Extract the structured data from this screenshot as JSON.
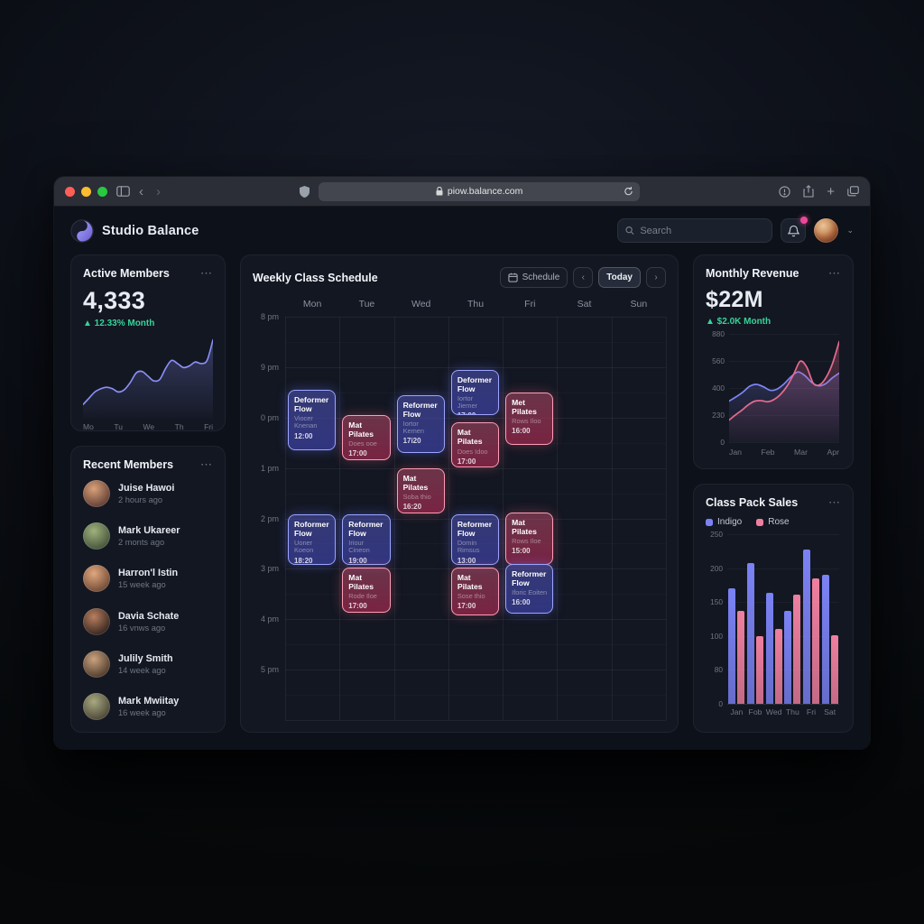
{
  "browser": {
    "url": "piow.balance.com",
    "traffic_lights": [
      "#ff5f57",
      "#febc2e",
      "#28c840"
    ]
  },
  "icons": {
    "card_menu": "⋯",
    "back": "‹",
    "forward": "›",
    "prev": "‹",
    "next": "›",
    "chevron_down": "⌄",
    "plus": "+",
    "trend_up": "▲"
  },
  "header": {
    "app_name": "Studio Balance",
    "search_placeholder": "Search"
  },
  "active_members": {
    "title": "Active Members",
    "value": "4,333",
    "delta": "▲ 12.33% Month"
  },
  "recent_members": {
    "title": "Recent Members",
    "members": [
      {
        "name": "Juise Hawoi",
        "ago": "2 hours ago",
        "c1": "#d9a27a",
        "c2": "#5f3d33"
      },
      {
        "name": "Mark Ukareer",
        "ago": "2 monts ago",
        "c1": "#9fb27c",
        "c2": "#45523a"
      },
      {
        "name": "Harron'l Istin",
        "ago": "15 week ago",
        "c1": "#e0a87e",
        "c2": "#6e4936"
      },
      {
        "name": "Davia Schate",
        "ago": "16 vnws ago",
        "c1": "#b97f5e",
        "c2": "#33241f"
      },
      {
        "name": "Julily Smith",
        "ago": "14 week ago",
        "c1": "#caa37f",
        "c2": "#4d3a2b"
      },
      {
        "name": "Mark Mwiitay",
        "ago": "16 week ago",
        "c1": "#a8a981",
        "c2": "#4a4536"
      }
    ]
  },
  "schedule": {
    "title": "Weekly Class Schedule",
    "schedule_button": "Schedule",
    "today_button": "Today",
    "days": [
      "Mon",
      "Tue",
      "Wed",
      "Thu",
      "Fri",
      "Sat",
      "Sun"
    ],
    "times": [
      "8 pm",
      "9 pm",
      "0 pm",
      "1 pm",
      "2 pm",
      "3 pm",
      "4 pm",
      "5 pm"
    ],
    "events": [
      {
        "day": 0,
        "title": "Deformer Flow",
        "instructor": "Viocer Knenan",
        "time": "12:00",
        "color": "indigo",
        "start": 1.45,
        "span": 1.25
      },
      {
        "day": 1,
        "title": "Mat Pilates",
        "instructor": "Does ooe",
        "time": "17:00",
        "color": "rose",
        "start": 1.95,
        "span": 0.95
      },
      {
        "day": 2,
        "title": "Reformer Flow",
        "instructor": "Iortor Kemen",
        "time": "17i20",
        "color": "indigo",
        "start": 1.55,
        "span": 1.2
      },
      {
        "day": 3,
        "title": "Deformer Flow",
        "instructor": "Iortor Jiemer",
        "time": "17:00",
        "color": "indigo",
        "start": 1.05,
        "span": 0.95
      },
      {
        "day": 3,
        "title": "Mat Pilates",
        "instructor": "Does Idoo",
        "time": "17:00",
        "color": "rose",
        "start": 2.1,
        "span": 0.95
      },
      {
        "day": 4,
        "title": "Met Pilates",
        "instructor": "Rows Iloo",
        "time": "16:00",
        "color": "rose",
        "start": 1.5,
        "span": 1.1
      },
      {
        "day": 2,
        "title": "Mat Pilates",
        "instructor": "Soba thio",
        "time": "16:20",
        "color": "rose",
        "start": 3.0,
        "span": 0.95
      },
      {
        "day": 0,
        "title": "Roformer Flow",
        "instructor": "Uoner Koeon",
        "time": "18:20",
        "color": "indigo",
        "start": 3.92,
        "span": 1.05
      },
      {
        "day": 1,
        "title": "Reformer Flow",
        "instructor": "Iriour Cineon",
        "time": "19:00",
        "color": "indigo",
        "start": 3.92,
        "span": 1.05
      },
      {
        "day": 3,
        "title": "Reformer Flow",
        "instructor": "Domin Rimsus",
        "time": "13:00",
        "color": "indigo",
        "start": 3.92,
        "span": 1.05
      },
      {
        "day": 4,
        "title": "Mat Pilates",
        "instructor": "Rows Iloe",
        "time": "15:00",
        "color": "rose",
        "start": 3.88,
        "span": 1.1
      },
      {
        "day": 1,
        "title": "Mat Pilates",
        "instructor": "Rode Iloe",
        "time": "17:00",
        "color": "rose",
        "start": 4.97,
        "span": 0.95
      },
      {
        "day": 3,
        "title": "Mat Pilates",
        "instructor": "Sose thio",
        "time": "17:00",
        "color": "rose",
        "start": 4.97,
        "span": 1.0
      },
      {
        "day": 4,
        "title": "Reformer Flow",
        "instructor": "Iforic Eoiten",
        "time": "16:00",
        "color": "indigo",
        "start": 4.9,
        "span": 1.05
      }
    ]
  },
  "revenue": {
    "title": "Monthly Revenue",
    "value": "$22M",
    "delta": "▲ $2.0K Month"
  },
  "class_pack": {
    "title": "Class Pack Sales"
  },
  "chart_data": [
    {
      "id": "active-members-spark",
      "type": "area",
      "title": "Active Members weekly trend",
      "x_labels": [
        "Mo",
        "Tu",
        "We",
        "Th",
        "Fri"
      ],
      "ylim": [
        0,
        100
      ],
      "color": "#8b90f8",
      "values": [
        14,
        22,
        30,
        34,
        36,
        34,
        30,
        33,
        42,
        54,
        56,
        50,
        44,
        46,
        60,
        70,
        66,
        61,
        63,
        68,
        66,
        70,
        96
      ]
    },
    {
      "id": "monthly-revenue",
      "type": "line",
      "title": "Monthly Revenue",
      "x_labels": [
        "Jan",
        "Feb",
        "Mar",
        "Apr"
      ],
      "y_ticks": [
        "880",
        "560",
        "400",
        "230",
        "0"
      ],
      "ylim": [
        0,
        880
      ],
      "grid": true,
      "series": [
        {
          "name": "Indigo",
          "color": "#7d84f5",
          "values": [
            330,
            365,
            405,
            455,
            470,
            450,
            420,
            432,
            475,
            535,
            575,
            545,
            488,
            458,
            475,
            525,
            565
          ]
        },
        {
          "name": "Rose",
          "color": "#e66a8e",
          "values": [
            170,
            215,
            255,
            300,
            330,
            333,
            325,
            345,
            390,
            460,
            560,
            665,
            615,
            480,
            468,
            530,
            650,
            830
          ]
        }
      ]
    },
    {
      "id": "class-pack-sales",
      "type": "bar",
      "title": "Class Pack Sales",
      "x_labels": [
        "Jan",
        "Fob",
        "Wed",
        "Thu",
        "Fri",
        "Sat"
      ],
      "y_ticks": [
        "250",
        "200",
        "150",
        "100",
        "80",
        "0"
      ],
      "ylim": [
        0,
        250
      ],
      "legend_position": "top",
      "series": [
        {
          "name": "Indigo",
          "color": "#7b82f4",
          "values": [
            170,
            208,
            164,
            137,
            227,
            190
          ]
        },
        {
          "name": "Rose",
          "color": "#ef7f9f",
          "values": [
            137,
            100,
            111,
            161,
            185,
            101
          ]
        }
      ]
    }
  ]
}
